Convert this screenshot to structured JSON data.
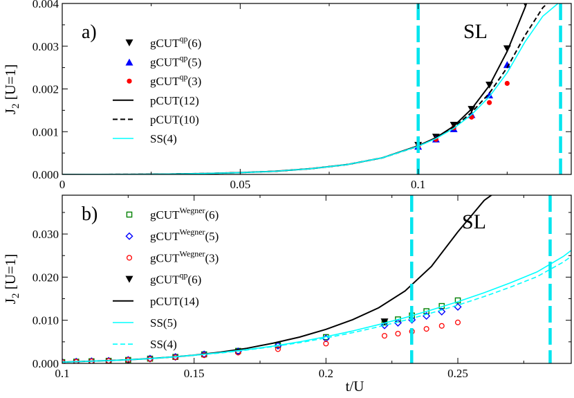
{
  "chart_data": [
    {
      "type": "line",
      "panel_label": "a)",
      "region_label": "SL",
      "xlabel": "",
      "ylabel": "J_2 [U=1]",
      "xlim": [
        0,
        0.143
      ],
      "ylim": [
        0,
        0.004
      ],
      "x_ticks": [
        0,
        0.05,
        0.1
      ],
      "x_tick_labels": [
        "0",
        "0.05",
        "0.1"
      ],
      "y_ticks": [
        0,
        0.001,
        0.002,
        0.003,
        0.004
      ],
      "y_tick_labels": [
        "0.000",
        "0.001",
        "0.002",
        "0.003",
        "0.004"
      ],
      "vlines": [
        0.1,
        0.14
      ],
      "legend_placement": "top-left",
      "series": [
        {
          "name": "gCUT",
          "sup": "qp",
          "order": "(6)",
          "marker": "triangle-down",
          "color": "#000000",
          "x": [
            0.1,
            0.105,
            0.11,
            0.115,
            0.12,
            0.125,
            0.13
          ],
          "y": [
            0.00068,
            0.00087,
            0.00115,
            0.00152,
            0.00209,
            0.00294,
            0.00402
          ]
        },
        {
          "name": "gCUT",
          "sup": "qp",
          "order": "(5)",
          "marker": "triangle-up",
          "color": "#0000ff",
          "x": [
            0.1,
            0.105,
            0.11,
            0.115,
            0.12,
            0.125
          ],
          "y": [
            0.00066,
            0.00083,
            0.00107,
            0.0014,
            0.00186,
            0.00257
          ]
        },
        {
          "name": "gCUT",
          "sup": "qp",
          "order": "(3)",
          "marker": "circle-filled",
          "color": "#ff0000",
          "x": [
            0.1,
            0.105,
            0.11,
            0.115,
            0.12,
            0.125
          ],
          "y": [
            0.00066,
            0.00082,
            0.00109,
            0.00134,
            0.00168,
            0.00213
          ]
        },
        {
          "name": "pCUT(12)",
          "line": "solid",
          "color": "#000000",
          "x": [
            0,
            0.01,
            0.02,
            0.03,
            0.04,
            0.05,
            0.06,
            0.07,
            0.08,
            0.09,
            0.1,
            0.105,
            0.11,
            0.115,
            0.12,
            0.125,
            0.13,
            0.135
          ],
          "y": [
            0,
            4e-07,
            2.6e-06,
            9e-06,
            2.1e-05,
            4.2e-05,
            7.5e-05,
            0.000135,
            0.00023,
            0.00039,
            0.00067,
            0.00086,
            0.00113,
            0.00153,
            0.00208,
            0.00288,
            0.0039,
            0.0051
          ]
        },
        {
          "name": "pCUT(10)",
          "line": "dashed",
          "color": "#000000",
          "x": [
            0,
            0.01,
            0.02,
            0.03,
            0.04,
            0.05,
            0.06,
            0.07,
            0.08,
            0.09,
            0.1,
            0.105,
            0.11,
            0.115,
            0.12,
            0.125,
            0.13,
            0.135,
            0.14
          ],
          "y": [
            0,
            4e-07,
            2.6e-06,
            9e-06,
            2.1e-05,
            4.2e-05,
            7.5e-05,
            0.000135,
            0.00023,
            0.00039,
            0.00066,
            0.00085,
            0.0011,
            0.00145,
            0.0019,
            0.0025,
            0.00325,
            0.0039,
            0.0043
          ]
        },
        {
          "name": "SS(4)",
          "line": "solid",
          "color": "#00ffff",
          "x": [
            0,
            0.01,
            0.02,
            0.03,
            0.04,
            0.05,
            0.06,
            0.07,
            0.08,
            0.09,
            0.1,
            0.105,
            0.11,
            0.115,
            0.12,
            0.125,
            0.13,
            0.135,
            0.14
          ],
          "y": [
            0,
            4e-07,
            2.6e-06,
            9e-06,
            2.1e-05,
            4.2e-05,
            7.5e-05,
            0.000135,
            0.00023,
            0.00039,
            0.00066,
            0.00084,
            0.00108,
            0.0014,
            0.00182,
            0.00238,
            0.0031,
            0.0037,
            0.00405
          ]
        }
      ]
    },
    {
      "type": "line",
      "panel_label": "b)",
      "region_label": "SL",
      "xlabel": "t/U",
      "ylabel": "J_2 [U=1]",
      "xlim": [
        0.1,
        0.293
      ],
      "ylim": [
        0,
        0.039
      ],
      "x_ticks": [
        0.1,
        0.15,
        0.2,
        0.25
      ],
      "x_tick_labels": [
        "0.1",
        "0.15",
        "0.2",
        "0.25"
      ],
      "y_ticks": [
        0,
        0.01,
        0.02,
        0.03
      ],
      "y_tick_labels": [
        "0.000",
        "0.010",
        "0.020",
        "0.030"
      ],
      "vlines": [
        0.2325,
        0.285
      ],
      "legend_placement": "top-left",
      "series": [
        {
          "name": "gCUT",
          "sup": "Wegner",
          "order": "(6)",
          "marker": "square-open",
          "color": "#008000",
          "x": [
            0.1,
            0.1053,
            0.1111,
            0.1176,
            0.125,
            0.1333,
            0.1429,
            0.1538,
            0.1667,
            0.1818,
            0.2,
            0.2222,
            0.2273,
            0.2326,
            0.2381,
            0.2439,
            0.25
          ],
          "y": [
            0.0003,
            0.0004,
            0.0005,
            0.0006,
            0.0008,
            0.0011,
            0.0015,
            0.0021,
            0.0029,
            0.0042,
            0.0061,
            0.0095,
            0.0102,
            0.0111,
            0.0121,
            0.0133,
            0.0146
          ]
        },
        {
          "name": "gCUT",
          "sup": "Wegner",
          "order": "(5)",
          "marker": "diamond-open",
          "color": "#0000ff",
          "x": [
            0.1,
            0.1053,
            0.1111,
            0.1176,
            0.125,
            0.1333,
            0.1429,
            0.1538,
            0.1667,
            0.1818,
            0.2,
            0.2222,
            0.2273,
            0.2326,
            0.2381,
            0.2439,
            0.25
          ],
          "y": [
            0.0003,
            0.0004,
            0.0005,
            0.0006,
            0.0008,
            0.0011,
            0.0015,
            0.0021,
            0.0028,
            0.0041,
            0.0058,
            0.0088,
            0.0094,
            0.0101,
            0.011,
            0.012,
            0.0131
          ]
        },
        {
          "name": "gCUT",
          "sup": "Wegner",
          "order": "(3)",
          "marker": "circle-open",
          "color": "#ff0000",
          "x": [
            0.1,
            0.1053,
            0.1111,
            0.1176,
            0.125,
            0.1333,
            0.1429,
            0.1538,
            0.1667,
            0.1818,
            0.2,
            0.2222,
            0.2273,
            0.2326,
            0.2381,
            0.2439,
            0.25
          ],
          "y": [
            0.0003,
            0.0004,
            0.0005,
            0.0006,
            0.0008,
            0.001,
            0.0014,
            0.0019,
            0.0025,
            0.0033,
            0.0046,
            0.0064,
            0.0069,
            0.0074,
            0.008,
            0.0087,
            0.0095
          ]
        },
        {
          "name": "gCUT",
          "sup": "qp",
          "order": "(6)",
          "marker": "triangle-down",
          "color": "#000000",
          "x": [
            0.2222
          ],
          "y": [
            0.0096
          ]
        },
        {
          "name": "pCUT(14)",
          "line": "solid",
          "color": "#000000",
          "x": [
            0.1,
            0.11,
            0.12,
            0.13,
            0.14,
            0.15,
            0.16,
            0.17,
            0.18,
            0.19,
            0.2,
            0.21,
            0.22,
            0.23,
            0.24,
            0.25,
            0.26,
            0.265
          ],
          "y": [
            0.0003,
            0.0005,
            0.0007,
            0.001,
            0.0014,
            0.0019,
            0.0026,
            0.0035,
            0.0047,
            0.0061,
            0.0079,
            0.0101,
            0.0129,
            0.0168,
            0.0225,
            0.0305,
            0.0378,
            0.04
          ]
        },
        {
          "name": "SS(5)",
          "line": "solid",
          "color": "#00ffff",
          "x": [
            0.1,
            0.11,
            0.12,
            0.13,
            0.14,
            0.15,
            0.16,
            0.17,
            0.18,
            0.19,
            0.2,
            0.21,
            0.22,
            0.23,
            0.24,
            0.25,
            0.26,
            0.27,
            0.28,
            0.29,
            0.293
          ],
          "y": [
            0.0003,
            0.0005,
            0.0007,
            0.001,
            0.0014,
            0.0019,
            0.0025,
            0.0032,
            0.004,
            0.005,
            0.0062,
            0.0075,
            0.009,
            0.0106,
            0.0124,
            0.0143,
            0.0164,
            0.0187,
            0.0212,
            0.0248,
            0.0262
          ]
        },
        {
          "name": "SS(4)",
          "line": "dashed",
          "color": "#00ffff",
          "x": [
            0.1,
            0.11,
            0.12,
            0.13,
            0.14,
            0.15,
            0.16,
            0.17,
            0.18,
            0.19,
            0.2,
            0.21,
            0.22,
            0.23,
            0.24,
            0.25,
            0.26,
            0.27,
            0.28,
            0.29,
            0.293
          ],
          "y": [
            0.0003,
            0.0005,
            0.0007,
            0.001,
            0.0014,
            0.0019,
            0.0024,
            0.0031,
            0.0039,
            0.0048,
            0.0059,
            0.0071,
            0.0085,
            0.01,
            0.0117,
            0.0135,
            0.0155,
            0.0177,
            0.0201,
            0.0235,
            0.0248
          ]
        }
      ]
    }
  ]
}
